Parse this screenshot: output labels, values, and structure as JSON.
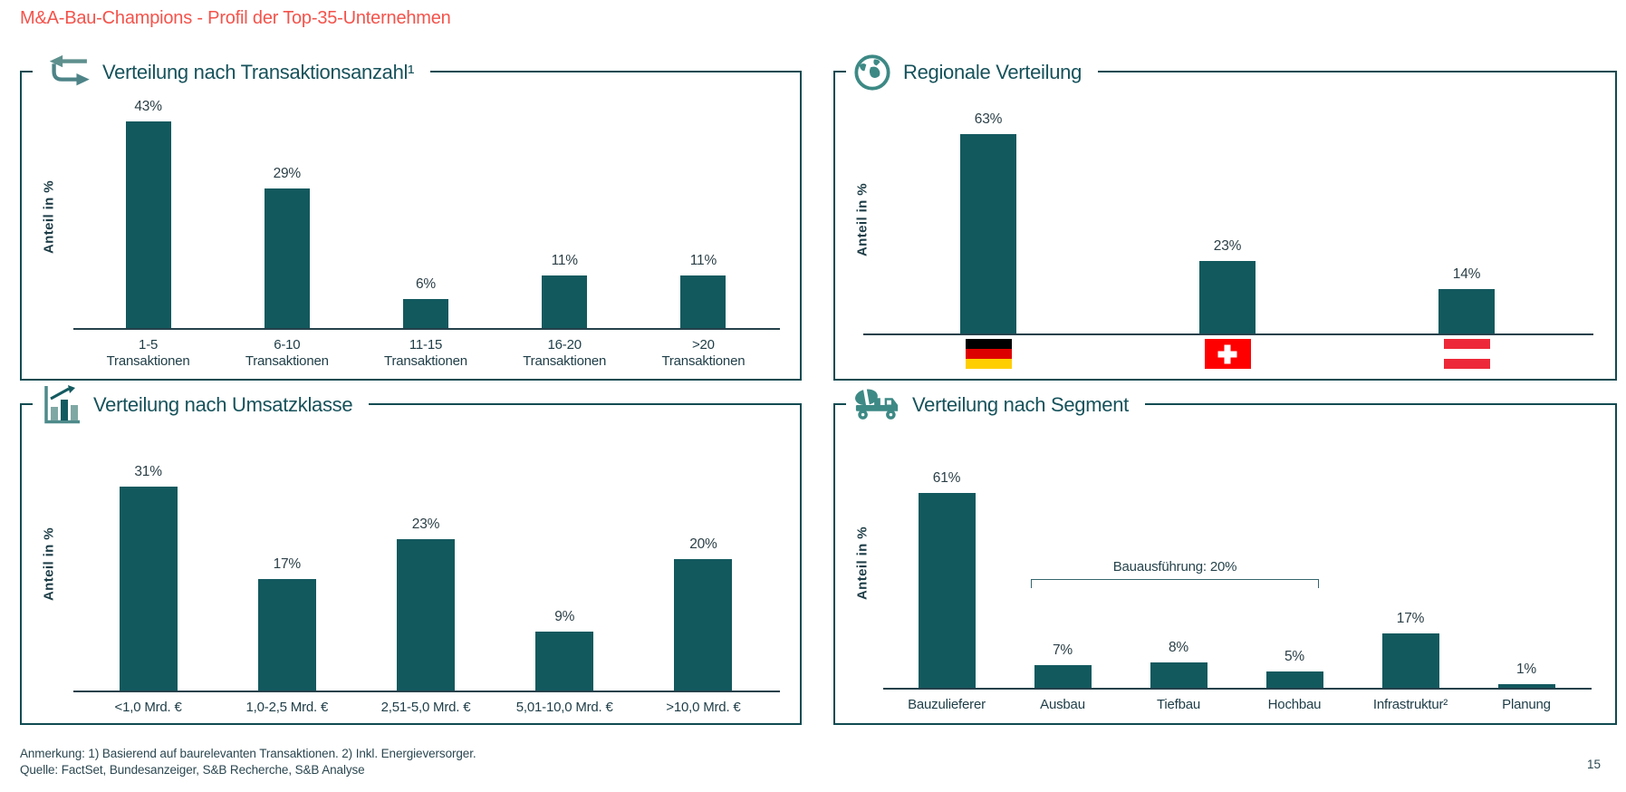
{
  "header": {
    "title": "M&A-Bau-Champions - Profil der Top-35-Unternehmen"
  },
  "footer": {
    "note": "Anmerkung: 1) Basierend auf baurelevanten Transaktionen. 2) Inkl. Energieversorger.",
    "source": "Quelle: FactSet, Bundesanzeiger, S&B Recherche, S&B Analyse",
    "page_number": "15"
  },
  "colors": {
    "accent_red": "#F3534B",
    "bar_teal": "#12595E",
    "border_teal": "#104B52",
    "icon_teal": "#3D8985",
    "text_dark": "#1E3D47",
    "flag_germany": [
      "#000000",
      "#DD0000",
      "#FFCE00"
    ],
    "flag_switzerland": [
      "#FF0000",
      "#FFFFFF"
    ],
    "flag_austria": [
      "#ED2939",
      "#FFFFFF"
    ]
  },
  "chart_data": [
    {
      "type": "bar",
      "title": "Verteilung nach Transaktionsanzahl¹",
      "icon": "swap-arrows-icon",
      "ylabel": "Anteil in %",
      "unit": "%",
      "grid": false,
      "categories": [
        "1-5\nTransaktionen",
        "6-10\nTransaktionen",
        "11-15\nTransaktionen",
        "16-20\nTransaktionen",
        ">20\nTransaktionen"
      ],
      "values": [
        43,
        29,
        6,
        11,
        11
      ]
    },
    {
      "type": "bar",
      "title": "Regionale Verteilung",
      "icon": "globe-icon",
      "ylabel": "Anteil in %",
      "unit": "%",
      "grid": false,
      "categories": [
        "Deutschland",
        "Schweiz",
        "Österreich"
      ],
      "category_flags": [
        "germany",
        "switzerland",
        "austria"
      ],
      "values": [
        63,
        23,
        14
      ]
    },
    {
      "type": "bar",
      "title": "Verteilung nach Umsatzklasse",
      "icon": "bar-chart-icon",
      "ylabel": "Anteil in %",
      "unit": "%",
      "grid": false,
      "categories": [
        "<1,0 Mrd. €",
        "1,0-2,5 Mrd. €",
        "2,51-5,0 Mrd. €",
        "5,01-10,0 Mrd. €",
        ">10,0 Mrd. €"
      ],
      "values": [
        31,
        17,
        23,
        9,
        20
      ]
    },
    {
      "type": "bar",
      "title": "Verteilung nach Segment",
      "icon": "mixer-truck-icon",
      "ylabel": "Anteil in %",
      "unit": "%",
      "grid": false,
      "categories": [
        "Bauzulieferer",
        "Ausbau",
        "Tiefbau",
        "Hochbau",
        "Infrastruktur²",
        "Planung"
      ],
      "values": [
        61,
        7,
        8,
        5,
        17,
        1
      ],
      "annotation": {
        "label": "Bauausführung: 20%",
        "from": "Ausbau",
        "to": "Hochbau",
        "from_index": 1,
        "to_index": 3,
        "value": 20
      }
    }
  ]
}
